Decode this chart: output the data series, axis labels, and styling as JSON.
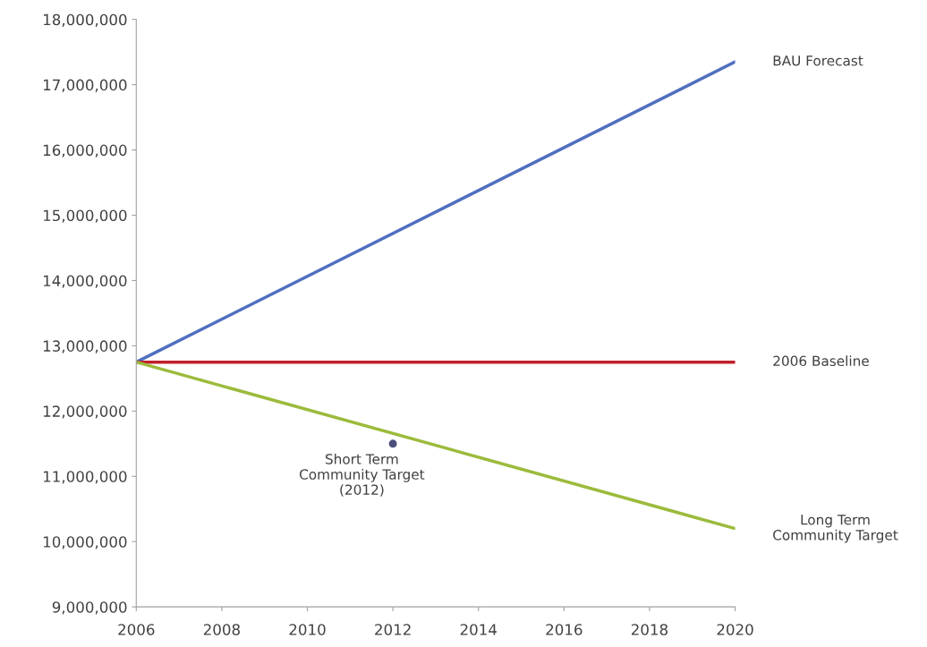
{
  "chart_data": {
    "type": "line",
    "x": [
      2006,
      2020
    ],
    "series": [
      {
        "name": "BAU Forecast",
        "color": "#4f6fbf",
        "values": [
          12750000,
          17350000
        ]
      },
      {
        "name": "2006 Baseline",
        "color": "#c0202a",
        "values": [
          12750000,
          12750000
        ]
      },
      {
        "name": "Long Term\nCommunity Target",
        "color": "#9bbb3b",
        "values": [
          12750000,
          10200000
        ]
      },
      {
        "name": "Short Term\nCommunity Target\n(2012)",
        "type": "scatter",
        "color": "#4a4f7a",
        "x": [
          2012
        ],
        "values": [
          11500000
        ]
      }
    ],
    "xlim": [
      2006,
      2020
    ],
    "xticks": [
      2006,
      2008,
      2010,
      2012,
      2014,
      2016,
      2018,
      2020
    ],
    "ylim": [
      9000000,
      18000000
    ],
    "yticks": [
      {
        "value": 9000000,
        "label": "9,000,000"
      },
      {
        "value": 10000000,
        "label": "10,000,000"
      },
      {
        "value": 11000000,
        "label": "11,000,000"
      },
      {
        "value": 12000000,
        "label": "12,000,000"
      },
      {
        "value": 13000000,
        "label": "13,000,000"
      },
      {
        "value": 14000000,
        "label": "14,000,000"
      },
      {
        "value": 15000000,
        "label": "15,000,000"
      },
      {
        "value": 16000000,
        "label": "16,000,000"
      },
      {
        "value": 17000000,
        "label": "17,000,000"
      },
      {
        "value": 18000000,
        "label": "18,000,000"
      }
    ],
    "grid": false,
    "legend": false
  }
}
